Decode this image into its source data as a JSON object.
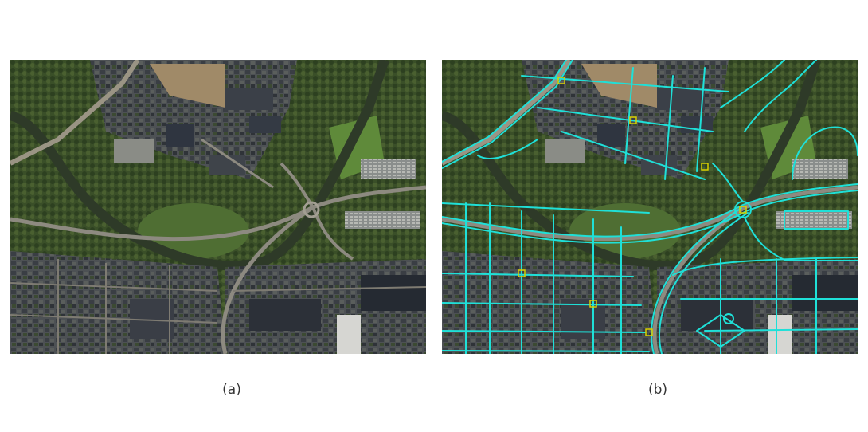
{
  "figure": {
    "panels": [
      {
        "caption": "(a)",
        "content": "aerial-photo"
      },
      {
        "caption": "(b)",
        "content": "aerial-photo-with-road-overlay"
      }
    ],
    "colors": {
      "overlay_line": "#1fe0d8",
      "overlay_junction": "#d8d000",
      "river": "#2e3a28",
      "vegetation": "#3f5a2a",
      "field": "#5f8a3a",
      "urban": "#4a4d50"
    }
  }
}
